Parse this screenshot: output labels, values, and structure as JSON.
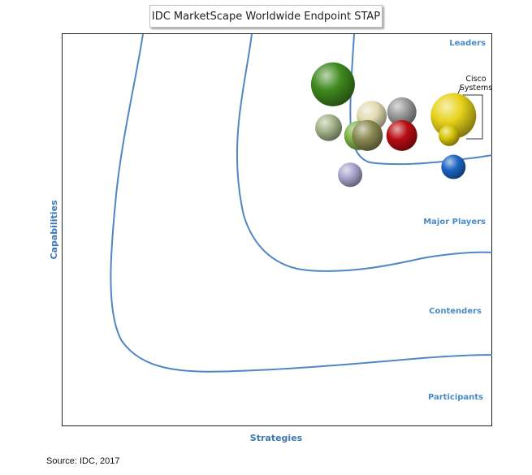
{
  "title": "IDC MarketScape Worldwide Endpoint STAP",
  "source": "Source: IDC, 2017",
  "chart_data": {
    "type": "scatter",
    "title": "IDC MarketScape Worldwide Endpoint STAP",
    "xlabel": "Strategies",
    "ylabel": "Capabilities",
    "xlim": [
      0,
      100
    ],
    "ylim": [
      0,
      100
    ],
    "grid": false,
    "regions": [
      "Leaders",
      "Major Players",
      "Contenders",
      "Participants"
    ],
    "labels": [
      {
        "name": "Cisco\nSystems"
      }
    ],
    "points": [
      {
        "x": 63,
        "y": 87,
        "size": 54,
        "color": "#3f8a1e",
        "label": ""
      },
      {
        "x": 72,
        "y": 79,
        "size": 37,
        "color": "#e3dcb3",
        "label": ""
      },
      {
        "x": 79,
        "y": 80,
        "size": 36,
        "color": "#9a9a9a",
        "label": ""
      },
      {
        "x": 91,
        "y": 79,
        "size": 56,
        "color": "#e7d21a",
        "label": "Cisco\nSystems"
      },
      {
        "x": 62,
        "y": 76,
        "size": 33,
        "color": "#a5b58a",
        "label": ""
      },
      {
        "x": 69,
        "y": 74,
        "size": 36,
        "color": "#7fb548",
        "label": ""
      },
      {
        "x": 71,
        "y": 74,
        "size": 38,
        "color": "#8a8a52",
        "label": ""
      },
      {
        "x": 79,
        "y": 74,
        "size": 38,
        "color": "#b80d12",
        "label": ""
      },
      {
        "x": 90,
        "y": 74,
        "size": 26,
        "color": "#d7c60b",
        "label": ""
      },
      {
        "x": 91,
        "y": 66,
        "size": 30,
        "color": "#1c66c4",
        "label": ""
      },
      {
        "x": 67,
        "y": 64,
        "size": 30,
        "color": "#a8a6cf",
        "label": ""
      }
    ]
  }
}
